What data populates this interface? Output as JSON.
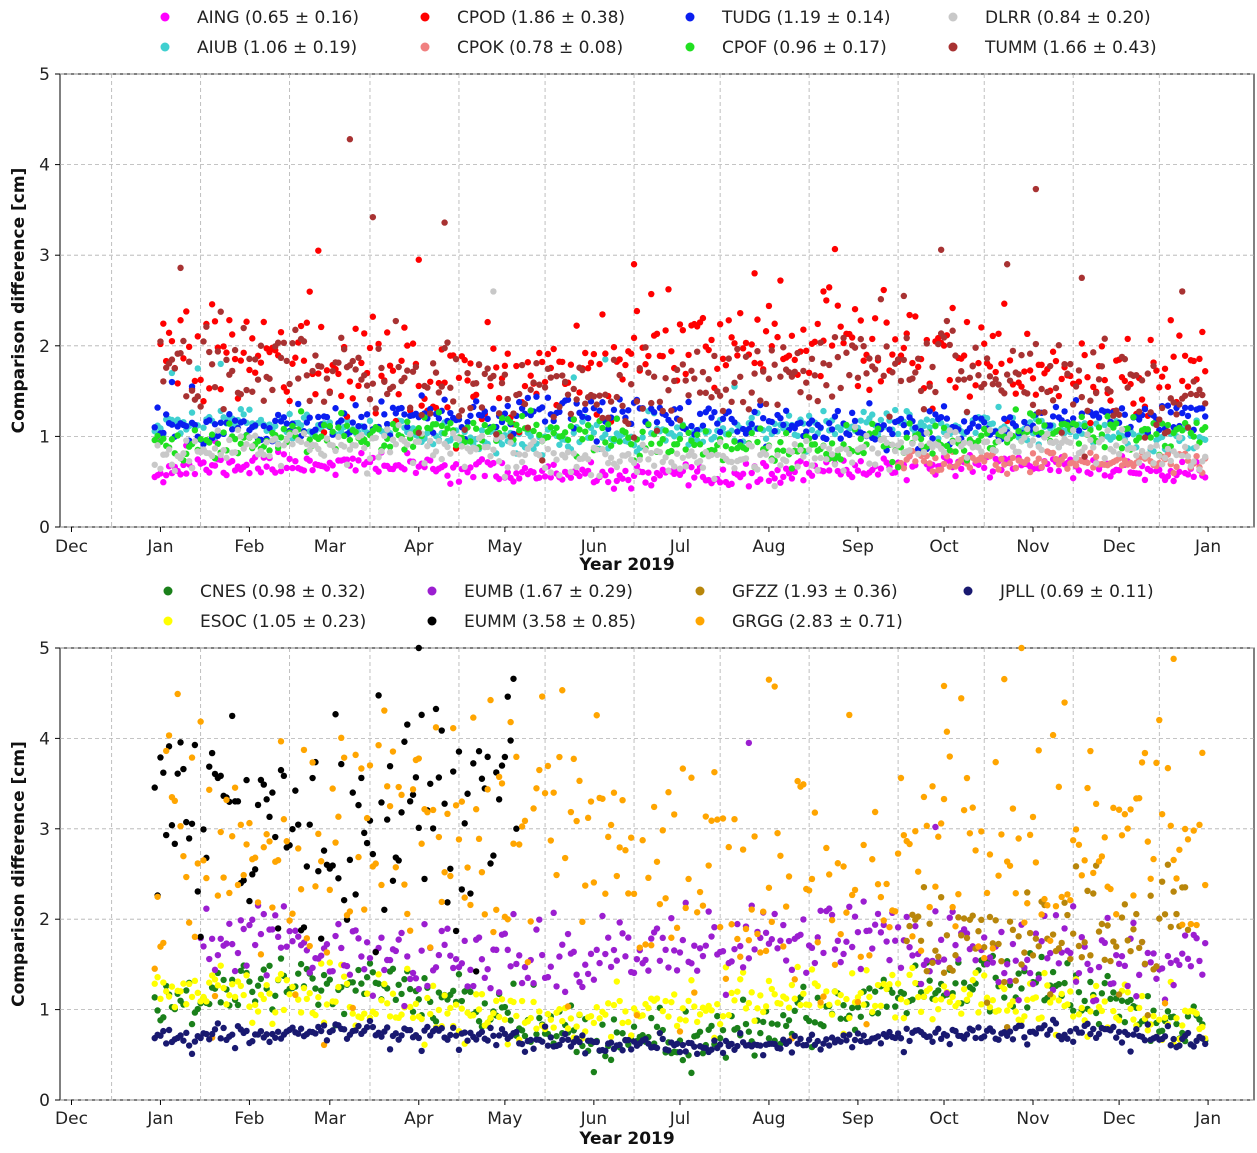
{
  "chart_data": [
    {
      "type": "scatter",
      "xlabel": "Year 2019",
      "ylabel": "Comparison difference [cm]",
      "ylim": [
        0,
        5
      ],
      "yticks": [
        "0",
        "1",
        "2",
        "3",
        "4",
        "5"
      ],
      "xlim": [
        "2018-11-27",
        "2020-01-17"
      ],
      "xticks": [
        "Dec",
        "Jan",
        "Feb",
        "Mar",
        "Apr",
        "May",
        "Jun",
        "Jul",
        "Aug",
        "Sep",
        "Oct",
        "Nov",
        "Dec",
        "Jan"
      ],
      "grid": true,
      "legend_position": "top",
      "series": [
        {
          "name": "AING (0.65 ± 0.16)",
          "color": "#ff00ff",
          "start": "2018-12-30",
          "end": "2019-12-31",
          "mean": 0.62,
          "amp": 0.08,
          "sd": 0.06,
          "extra": [
            [
              "2019-01-01",
              0.95
            ],
            [
              "2019-01-10",
              0.9
            ],
            [
              "2019-01-20",
              0.95
            ]
          ]
        },
        {
          "name": "AIUB (1.06 ± 0.19)",
          "color": "#40d0d0",
          "start": "2018-12-30",
          "end": "2019-12-31",
          "mean": 1.05,
          "amp": 0.08,
          "sd": 0.08,
          "extra": [
            [
              "2019-01-05",
              1.7
            ],
            [
              "2019-01-14",
              1.75
            ],
            [
              "2019-01-22",
              1.8
            ],
            [
              "2019-05-25",
              1.65
            ],
            [
              "2019-06-05",
              1.85
            ],
            [
              "2019-07-20",
              1.55
            ]
          ]
        },
        {
          "name": "CPOD (1.86 ± 0.38)",
          "color": "#ff0000",
          "start": "2019-01-01",
          "end": "2019-12-31",
          "mean": 1.9,
          "amp": 0.25,
          "sd": 0.3,
          "extra": [
            [
              "2019-02-25",
              3.05
            ],
            [
              "2019-04-01",
              2.95
            ],
            [
              "2019-06-15",
              2.9
            ],
            [
              "2019-07-27",
              2.8
            ],
            [
              "2019-08-20",
              2.6
            ]
          ]
        },
        {
          "name": "CPOK (0.78 ± 0.08)",
          "color": "#f08080",
          "start": "2019-09-15",
          "end": "2019-12-31",
          "mean": 0.75,
          "amp": 0.03,
          "sd": 0.06,
          "extra": []
        },
        {
          "name": "TUDG (1.19 ± 0.14)",
          "color": "#0a1ef0",
          "start": "2018-12-30",
          "end": "2019-12-31",
          "mean": 1.18,
          "amp": 0.08,
          "sd": 0.1,
          "extra": [
            [
              "2019-01-05",
              1.6
            ],
            [
              "2019-01-12",
              1.55
            ]
          ]
        },
        {
          "name": "CPOF (0.96 ± 0.17)",
          "color": "#20e020",
          "start": "2018-12-30",
          "end": "2019-12-31",
          "mean": 0.97,
          "amp": 0.1,
          "sd": 0.1,
          "extra": []
        },
        {
          "name": "DLRR (0.84 ± 0.20)",
          "color": "#c8c8c8",
          "start": "2018-12-30",
          "end": "2019-12-31",
          "mean": 0.82,
          "amp": 0.1,
          "sd": 0.1,
          "extra": [
            [
              "2019-04-27",
              2.6
            ]
          ]
        },
        {
          "name": "TUMM (1.66 ± 0.43)",
          "color": "#a83232",
          "start": "2019-01-01",
          "end": "2019-12-31",
          "mean": 1.6,
          "amp": 0.2,
          "sd": 0.25,
          "extra": [
            [
              "2019-01-08",
              2.86
            ],
            [
              "2019-03-08",
              4.28
            ],
            [
              "2019-03-16",
              3.42
            ],
            [
              "2019-04-10",
              3.36
            ],
            [
              "2019-09-17",
              2.55
            ],
            [
              "2019-09-30",
              3.06
            ],
            [
              "2019-10-23",
              2.9
            ],
            [
              "2019-11-02",
              3.73
            ],
            [
              "2019-11-18",
              2.75
            ],
            [
              "2019-12-23",
              2.6
            ]
          ]
        }
      ]
    },
    {
      "type": "scatter",
      "xlabel": "Year 2019",
      "ylabel": "Comparison difference [cm]",
      "ylim": [
        0,
        5
      ],
      "yticks": [
        "0",
        "1",
        "2",
        "3",
        "4",
        "5"
      ],
      "xlim": [
        "2018-11-27",
        "2020-01-17"
      ],
      "xticks": [
        "Dec",
        "Jan",
        "Feb",
        "Mar",
        "Apr",
        "May",
        "Jun",
        "Jul",
        "Aug",
        "Sep",
        "Oct",
        "Nov",
        "Dec",
        "Jan"
      ],
      "grid": true,
      "legend_position": "top",
      "series": [
        {
          "name": "CNES (0.98 ± 0.32)",
          "color": "#1a801a",
          "start": "2018-12-30",
          "end": "2019-12-31",
          "mean": 0.98,
          "amp": 0.35,
          "sd": 0.15,
          "extra": []
        },
        {
          "name": "ESOC (1.05 ± 0.23)",
          "color": "#ffff00",
          "start": "2018-12-30",
          "end": "2019-12-31",
          "mean": 1.05,
          "amp": 0.15,
          "sd": 0.15,
          "extra": []
        },
        {
          "name": "EUMB (1.67 ± 0.29)",
          "color": "#9b1ed0",
          "start": "2019-01-15",
          "end": "2019-12-31",
          "mean": 1.65,
          "amp": 0.12,
          "sd": 0.22,
          "extra": [
            [
              "2019-07-25",
              3.95
            ],
            [
              "2019-09-28",
              3.02
            ]
          ]
        },
        {
          "name": "EUMM (3.58 ± 0.85)",
          "color": "#000000",
          "start": "2018-12-30",
          "end": "2019-05-05",
          "mean": 3.4,
          "amp": 0.5,
          "sd": 0.6,
          "extra": [
            [
              "2019-04-01",
              5.0
            ]
          ]
        },
        {
          "name": "GFZZ (1.93 ± 0.36)",
          "color": "#b8860b",
          "start": "2019-09-18",
          "end": "2019-12-25",
          "mean": 1.95,
          "amp": 0.2,
          "sd": 0.3,
          "extra": []
        },
        {
          "name": "GRGG (2.83 ± 0.71)",
          "color": "#ffa500",
          "start": "2018-12-30",
          "end": "2019-12-31",
          "mean": 2.7,
          "amp": 0.3,
          "sd": 0.8,
          "extra": [
            [
              "2019-12-20",
              4.88
            ],
            [
              "2019-08-01",
              4.65
            ],
            [
              "2019-10-01",
              4.58
            ]
          ]
        },
        {
          "name": "JPLL (0.69 ± 0.11)",
          "color": "#191970",
          "start": "2018-12-30",
          "end": "2019-12-31",
          "mean": 0.68,
          "amp": 0.08,
          "sd": 0.06,
          "extra": []
        }
      ]
    }
  ]
}
